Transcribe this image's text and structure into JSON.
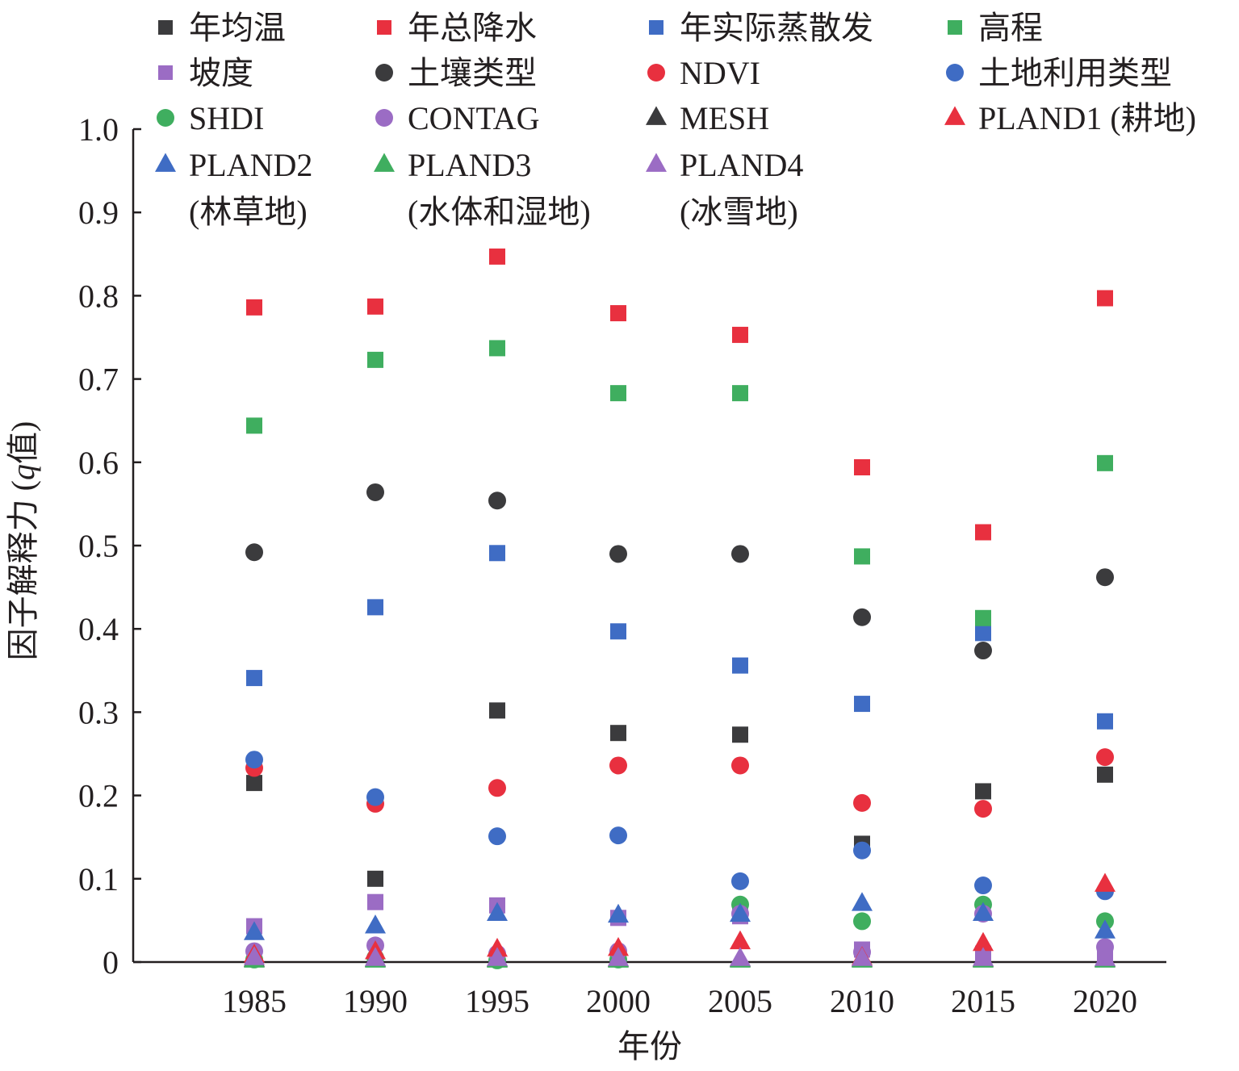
{
  "chart_data": {
    "type": "scatter",
    "xlabel": "年份",
    "ylabel_main": "因子解释力 (",
    "ylabel_var": "q",
    "ylabel_tail": "值)",
    "categories": [
      "1985",
      "1990",
      "1995",
      "2000",
      "2005",
      "2010",
      "2015",
      "2020"
    ],
    "ylim": [
      0,
      1.0
    ],
    "yticks": [
      "0",
      "0.1",
      "0.2",
      "0.3",
      "0.4",
      "0.5",
      "0.6",
      "0.7",
      "0.8",
      "0.9",
      "1.0"
    ],
    "grid": false,
    "legend_position": "top",
    "series": [
      {
        "name": "年均温",
        "marker": "square",
        "color": "#3b3b3d",
        "values": [
          0.215,
          0.1,
          0.302,
          0.275,
          0.273,
          0.142,
          0.205,
          0.225
        ]
      },
      {
        "name": "年总降水",
        "marker": "square",
        "color": "#e8303f",
        "values": [
          0.786,
          0.787,
          0.847,
          0.779,
          0.753,
          0.594,
          0.516,
          0.797
        ]
      },
      {
        "name": "年实际蒸散发",
        "marker": "square",
        "color": "#3f6cc4",
        "values": [
          0.341,
          0.426,
          0.491,
          0.397,
          0.356,
          0.31,
          0.395,
          0.289
        ]
      },
      {
        "name": "高程",
        "marker": "square",
        "color": "#3fae5f",
        "values": [
          0.644,
          0.723,
          0.737,
          0.683,
          0.683,
          0.487,
          0.413,
          0.599
        ]
      },
      {
        "name": "坡度",
        "marker": "square",
        "color": "#9b6cc4",
        "values": [
          0.043,
          0.072,
          0.068,
          0.053,
          0.055,
          0.015,
          0.01,
          0.01
        ]
      },
      {
        "name": "土壤类型",
        "marker": "circle",
        "color": "#3b3b3d",
        "values": [
          0.492,
          0.564,
          0.554,
          0.49,
          0.49,
          0.414,
          0.374,
          0.462
        ]
      },
      {
        "name": "NDVI",
        "marker": "circle",
        "color": "#e8303f",
        "values": [
          0.233,
          0.19,
          0.209,
          0.236,
          0.236,
          0.191,
          0.184,
          0.246
        ]
      },
      {
        "name": "土地利用类型",
        "marker": "circle",
        "color": "#3f6cc4",
        "values": [
          0.243,
          0.198,
          0.151,
          0.152,
          0.097,
          0.134,
          0.092,
          0.085
        ]
      },
      {
        "name": "SHDI",
        "marker": "circle",
        "color": "#3fae5f",
        "values": [
          0.003,
          0.005,
          0.002,
          0.003,
          0.069,
          0.049,
          0.069,
          0.049
        ]
      },
      {
        "name": "CONTAG",
        "marker": "circle",
        "color": "#9b6cc4",
        "values": [
          0.013,
          0.02,
          0.01,
          0.013,
          0.058,
          0.012,
          0.058,
          0.018
        ]
      },
      {
        "name": "MESH",
        "marker": "triangle",
        "color": "#3b3b3d",
        "values": [
          0.003,
          0.003,
          0.003,
          0.003,
          0.003,
          0.003,
          0.003,
          0.003
        ]
      },
      {
        "name": "PLAND1 (耕地)",
        "marker": "triangle",
        "color": "#e8303f",
        "values": [
          0.008,
          0.012,
          0.015,
          0.016,
          0.024,
          0.005,
          0.022,
          0.093
        ]
      },
      {
        "name": "PLAND2 (林草地)",
        "marker": "triangle",
        "color": "#3f6cc4",
        "values": [
          0.035,
          0.043,
          0.058,
          0.056,
          0.057,
          0.07,
          0.058,
          0.037
        ]
      },
      {
        "name": "PLAND3 (水体和湿地)",
        "marker": "triangle",
        "color": "#3fae5f",
        "values": [
          0.002,
          0.002,
          0.002,
          0.002,
          0.002,
          0.002,
          0.002,
          0.002
        ]
      },
      {
        "name": "PLAND4 (冰雪地)",
        "marker": "triangle",
        "color": "#9b6cc4",
        "values": [
          0.005,
          0.004,
          0.004,
          0.004,
          0.004,
          0.004,
          0.004,
          0.004
        ]
      }
    ],
    "legend": [
      [
        "年均温"
      ],
      [
        "年总降水"
      ],
      [
        "年实际蒸散发"
      ],
      [
        "高程"
      ],
      [
        "坡度"
      ],
      [
        "土壤类型"
      ],
      [
        "NDVI"
      ],
      [
        "土地利用类型"
      ],
      [
        "SHDI"
      ],
      [
        "CONTAG"
      ],
      [
        "MESH"
      ],
      [
        "PLAND1 (耕地)"
      ],
      [
        "PLAND2",
        "(林草地)"
      ],
      [
        "PLAND3",
        "(水体和湿地)"
      ],
      [
        "PLAND4",
        "(冰雪地)"
      ]
    ]
  }
}
